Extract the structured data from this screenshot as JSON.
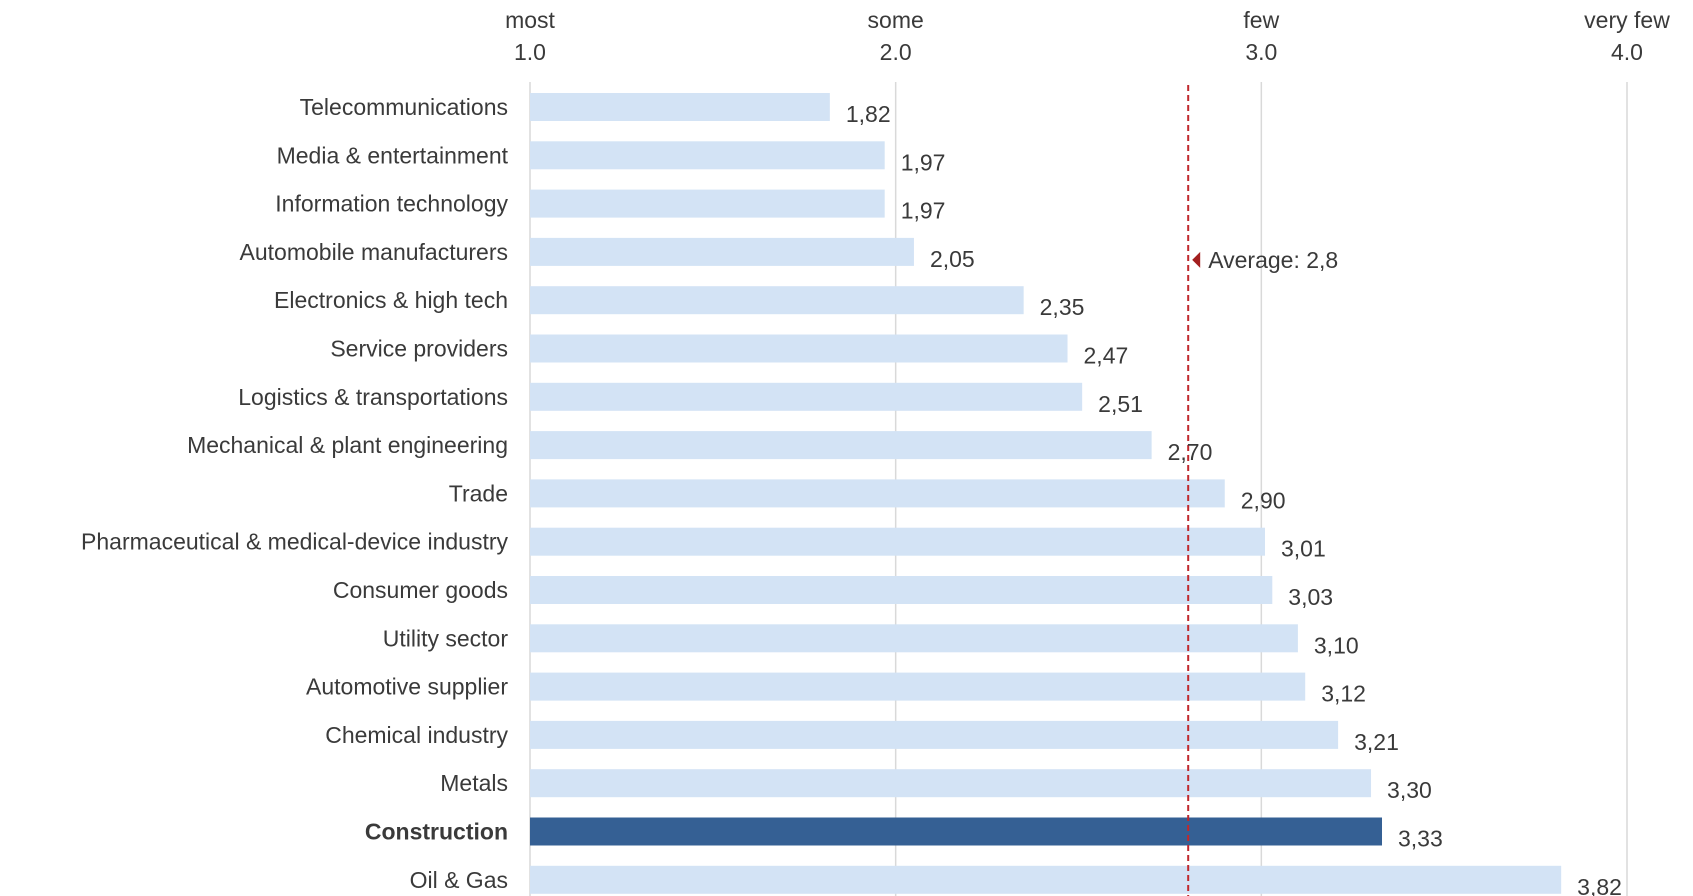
{
  "chart_data": {
    "type": "bar",
    "orientation": "horizontal",
    "x_axis_position": "top",
    "xlim": [
      1.0,
      4.0
    ],
    "x_ticks": [
      {
        "value": 1.0,
        "label": "1.0",
        "word": "most"
      },
      {
        "value": 2.0,
        "label": "2.0",
        "word": "some"
      },
      {
        "value": 3.0,
        "label": "3.0",
        "word": "few"
      },
      {
        "value": 4.0,
        "label": "4.0",
        "word": "very few"
      }
    ],
    "categories": [
      "Telecommunications",
      "Media & entertainment",
      "Information technology",
      "Automobile manufacturers",
      "Electronics & high tech",
      "Service providers",
      "Logistics & transportations",
      "Mechanical & plant engineering",
      "Trade",
      "Pharmaceutical & medical-device industry",
      "Consumer goods",
      "Utility sector",
      "Automotive supplier",
      "Chemical industry",
      "Metals",
      "Construction",
      "Oil & Gas"
    ],
    "values": [
      1.82,
      1.97,
      1.97,
      2.05,
      2.35,
      2.47,
      2.51,
      2.7,
      2.9,
      3.01,
      3.03,
      3.1,
      3.12,
      3.21,
      3.3,
      3.33,
      3.82
    ],
    "value_labels": [
      "1,82",
      "1,97",
      "1,97",
      "2,05",
      "2,35",
      "2,47",
      "2,51",
      "2,70",
      "2,90",
      "3,01",
      "3,03",
      "3,10",
      "3,12",
      "3,21",
      "3,30",
      "3,33",
      "3,82"
    ],
    "highlight_category": "Construction",
    "average": {
      "value": 2.8,
      "label": "Average: 2,8"
    },
    "grid": true,
    "colors": {
      "bar": "#d3e3f5",
      "highlight": "#356094",
      "grid": "#d9d9d9",
      "average_line": "#c0282d",
      "average_marker": "#a31f1f",
      "text": "#3a3a3a"
    }
  }
}
